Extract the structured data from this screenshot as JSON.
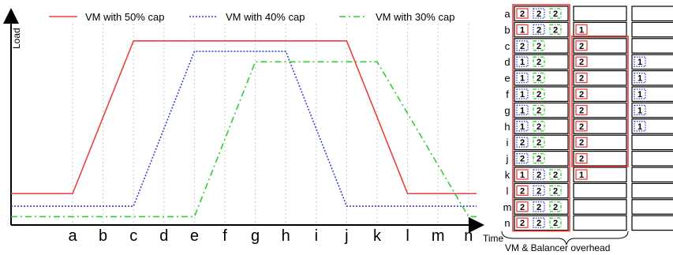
{
  "chart_data": {
    "type": "line",
    "ylabel": "Load",
    "xlabel": "Time",
    "categories": [
      "a",
      "b",
      "c",
      "d",
      "e",
      "f",
      "g",
      "h",
      "i",
      "j",
      "k",
      "l",
      "m",
      "n"
    ],
    "series": [
      {
        "name": "VM with 50% cap",
        "color": "#e8423f",
        "style": "solid",
        "points": [
          [
            "start",
            0.15
          ],
          [
            "a",
            0.15
          ],
          [
            "c",
            0.88
          ],
          [
            "j",
            0.88
          ],
          [
            "l",
            0.15
          ],
          [
            "end",
            0.15
          ]
        ]
      },
      {
        "name": "VM with 40% cap",
        "color": "#3344cc",
        "style": "dotted",
        "points": [
          [
            "start",
            0.09
          ],
          [
            "c",
            0.09
          ],
          [
            "e",
            0.83
          ],
          [
            "h",
            0.83
          ],
          [
            "j",
            0.09
          ],
          [
            "end",
            0.09
          ]
        ]
      },
      {
        "name": "VM with 30% cap",
        "color": "#33cc33",
        "style": "dashdot",
        "points": [
          [
            "start",
            0.04
          ],
          [
            "e",
            0.04
          ],
          [
            "g",
            0.78
          ],
          [
            "k",
            0.78
          ],
          [
            "n",
            0.04
          ],
          [
            "end",
            0.04
          ]
        ]
      }
    ]
  },
  "allocation": {
    "caption": "VM & Balancer overhead",
    "rows": [
      {
        "label": "a",
        "c1": [
          [
            "2",
            "r"
          ],
          [
            "2",
            "b"
          ],
          [
            "2",
            "g"
          ]
        ],
        "c2": [],
        "c3": []
      },
      {
        "label": "b",
        "c1": [
          [
            "1",
            "r"
          ],
          [
            "2",
            "b"
          ],
          [
            "2",
            "g"
          ]
        ],
        "c2": [
          [
            "1",
            "r"
          ]
        ],
        "c3": []
      },
      {
        "label": "c",
        "c1": [
          [
            "2",
            "b"
          ],
          [
            "2",
            "g"
          ]
        ],
        "c2": [
          [
            "2",
            "r"
          ]
        ],
        "c3": []
      },
      {
        "label": "d",
        "c1": [
          [
            "1",
            "b"
          ],
          [
            "2",
            "g"
          ]
        ],
        "c2": [
          [
            "2",
            "r"
          ]
        ],
        "c3": [
          [
            "1",
            "b"
          ]
        ]
      },
      {
        "label": "e",
        "c1": [
          [
            "1",
            "b"
          ],
          [
            "2",
            "g"
          ]
        ],
        "c2": [
          [
            "2",
            "r"
          ]
        ],
        "c3": [
          [
            "1",
            "b"
          ]
        ]
      },
      {
        "label": "f",
        "c1": [
          [
            "1",
            "b"
          ],
          [
            "2",
            "g"
          ]
        ],
        "c2": [
          [
            "2",
            "r"
          ]
        ],
        "c3": [
          [
            "1",
            "b"
          ]
        ]
      },
      {
        "label": "g",
        "c1": [
          [
            "1",
            "b"
          ],
          [
            "2",
            "g"
          ]
        ],
        "c2": [
          [
            "2",
            "r"
          ]
        ],
        "c3": [
          [
            "1",
            "b"
          ]
        ]
      },
      {
        "label": "h",
        "c1": [
          [
            "1",
            "b"
          ],
          [
            "2",
            "g"
          ]
        ],
        "c2": [
          [
            "2",
            "r"
          ]
        ],
        "c3": [
          [
            "1",
            "b"
          ]
        ]
      },
      {
        "label": "i",
        "c1": [
          [
            "2",
            "b"
          ],
          [
            "2",
            "g"
          ]
        ],
        "c2": [
          [
            "2",
            "r"
          ]
        ],
        "c3": []
      },
      {
        "label": "j",
        "c1": [
          [
            "2",
            "b"
          ],
          [
            "2",
            "g"
          ]
        ],
        "c2": [
          [
            "2",
            "r"
          ]
        ],
        "c3": []
      },
      {
        "label": "k",
        "c1": [
          [
            "1",
            "r"
          ],
          [
            "2",
            "b"
          ],
          [
            "2",
            "g"
          ]
        ],
        "c2": [
          [
            "1",
            "r"
          ]
        ],
        "c3": []
      },
      {
        "label": "l",
        "c1": [
          [
            "2",
            "r"
          ],
          [
            "2",
            "b"
          ],
          [
            "2",
            "g"
          ]
        ],
        "c2": [],
        "c3": []
      },
      {
        "label": "m",
        "c1": [
          [
            "2",
            "r"
          ],
          [
            "2",
            "b"
          ],
          [
            "2",
            "g"
          ]
        ],
        "c2": [],
        "c3": []
      },
      {
        "label": "n",
        "c1": [
          [
            "2",
            "r"
          ],
          [
            "2",
            "b"
          ],
          [
            "2",
            "g"
          ]
        ],
        "c2": [],
        "c3": []
      }
    ]
  }
}
